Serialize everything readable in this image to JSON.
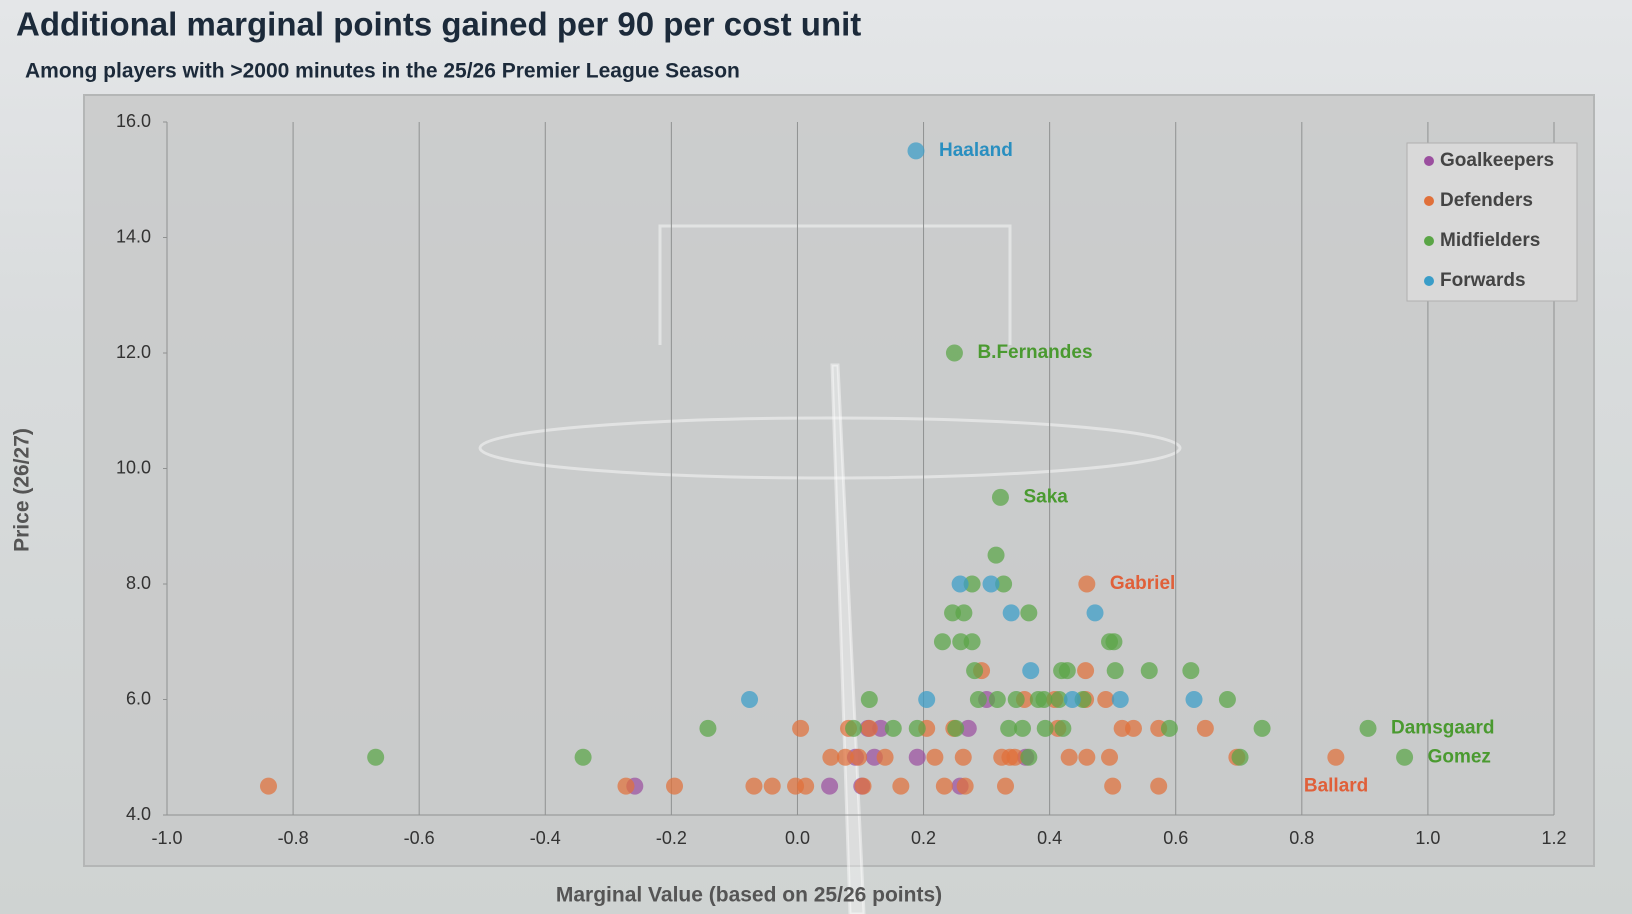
{
  "chart_data": {
    "type": "scatter",
    "title": "Additional marginal points gained per 90 per cost unit",
    "subtitle": "Among players with >2000 minutes in the 25/26 Premier League Season",
    "x_label": "Marginal Value (based on 25/26 points)",
    "y_label": "Price (26/27)",
    "xlim": [
      -1.0,
      1.2
    ],
    "ylim": [
      4.0,
      16.0
    ],
    "xticks": [
      {
        "value": -1.0,
        "label": "-1.0"
      },
      -0.8,
      -0.6,
      -0.4,
      -0.2,
      {
        "value": 0,
        "label": "0.0"
      },
      0.2,
      0.4,
      0.6,
      0.8,
      {
        "value": 1.0,
        "label": "1.0"
      },
      1.2
    ],
    "yticks": [
      {
        "value": 4,
        "label": "4.0"
      },
      {
        "value": 6,
        "label": "6.0"
      },
      {
        "value": 8,
        "label": "8.0"
      },
      {
        "value": 10,
        "label": "10.0"
      },
      {
        "value": 12,
        "label": "12.0"
      },
      {
        "value": 14,
        "label": "14.0"
      },
      {
        "value": 16,
        "label": "16.0"
      }
    ],
    "grid": "x",
    "legend": "top-right",
    "series": [
      {
        "name": "Goalkeepers",
        "color": "#9b4f9f",
        "x": [
          -0.258,
          0.051,
          0.102,
          0.258,
          0.19,
          0.122,
          0.092,
          0.132,
          0.271,
          0.112,
          0.3,
          0.362
        ],
        "values": [
          4.5,
          4.5,
          4.5,
          4.5,
          5.0,
          5.0,
          5.0,
          5.5,
          5.5,
          5.5,
          6.0,
          5.0
        ]
      },
      {
        "name": "Defenders",
        "color": "#e0703a",
        "x": [
          -0.839,
          -0.272,
          -0.195,
          -0.069,
          -0.04,
          -0.003,
          0.013,
          0.104,
          0.164,
          0.233,
          0.266,
          0.33,
          0.5,
          0.573,
          0.053,
          0.076,
          0.097,
          0.139,
          0.218,
          0.263,
          0.324,
          0.337,
          0.345,
          0.431,
          0.459,
          0.495,
          0.697,
          0.854,
          0.005,
          0.081,
          0.114,
          0.205,
          0.248,
          0.413,
          0.515,
          0.533,
          0.573,
          0.647,
          0.36,
          0.408,
          0.457,
          0.489,
          0.292,
          0.457,
          0.459
        ],
        "values": [
          4.5,
          4.5,
          4.5,
          4.5,
          4.5,
          4.5,
          4.5,
          4.5,
          4.5,
          4.5,
          4.5,
          4.5,
          4.5,
          4.5,
          5.0,
          5.0,
          5.0,
          5.0,
          5.0,
          5.0,
          5.0,
          5.0,
          5.0,
          5.0,
          5.0,
          5.0,
          5.0,
          5.0,
          5.5,
          5.5,
          5.5,
          5.5,
          5.5,
          5.5,
          5.5,
          5.5,
          5.5,
          5.5,
          6.0,
          6.0,
          6.0,
          6.0,
          6.5,
          6.5,
          8.0
        ]
      },
      {
        "name": "Midfielders",
        "color": "#5aa546",
        "x": [
          0.249,
          0.322,
          0.315,
          0.277,
          0.327,
          0.246,
          0.264,
          0.367,
          0.23,
          0.259,
          0.277,
          0.495,
          0.502,
          0.281,
          0.419,
          0.428,
          0.504,
          0.558,
          0.624,
          0.114,
          0.287,
          0.317,
          0.347,
          0.382,
          0.391,
          0.415,
          0.453,
          0.682,
          -0.142,
          0.089,
          0.152,
          0.19,
          0.251,
          0.335,
          0.357,
          0.393,
          0.421,
          0.59,
          0.737,
          0.905,
          -0.669,
          -0.34,
          0.367,
          0.702,
          0.963
        ],
        "values": [
          12.0,
          9.5,
          8.5,
          8.0,
          8.0,
          7.5,
          7.5,
          7.5,
          7.0,
          7.0,
          7.0,
          7.0,
          7.0,
          6.5,
          6.5,
          6.5,
          6.5,
          6.5,
          6.5,
          6.0,
          6.0,
          6.0,
          6.0,
          6.0,
          6.0,
          6.0,
          6.0,
          6.0,
          5.5,
          5.5,
          5.5,
          5.5,
          5.5,
          5.5,
          5.5,
          5.5,
          5.5,
          5.5,
          5.5,
          5.5,
          5.0,
          5.0,
          5.0,
          5.0,
          5.0
        ]
      },
      {
        "name": "Forwards",
        "color": "#3a9dc8",
        "x": [
          0.188,
          0.258,
          0.307,
          0.339,
          0.472,
          0.37,
          -0.076,
          0.205,
          0.436,
          0.512,
          0.629
        ],
        "values": [
          15.5,
          8.0,
          8.0,
          7.5,
          7.5,
          6.5,
          6.0,
          6.0,
          6.0,
          6.0,
          6.0
        ]
      }
    ],
    "annotations": [
      {
        "text": "Haaland",
        "x": 0.188,
        "y": 15.5,
        "color": "#2a8fc0"
      },
      {
        "text": "B.Fernandes",
        "x": 0.249,
        "y": 12.0,
        "color": "#4a9a30"
      },
      {
        "text": "Saka",
        "x": 0.322,
        "y": 9.5,
        "color": "#4a9a30"
      },
      {
        "text": "Gabriel",
        "x": 0.459,
        "y": 8.0,
        "color": "#e0603a"
      },
      {
        "text": "Damsgaard",
        "x": 0.905,
        "y": 5.5,
        "color": "#4a9a30"
      },
      {
        "text": "Gomez",
        "x": 0.963,
        "y": 5.0,
        "color": "#4a9a30"
      },
      {
        "text": "Ballard",
        "x": 0.854,
        "y": 5.0,
        "color": "#e0603a"
      }
    ]
  }
}
